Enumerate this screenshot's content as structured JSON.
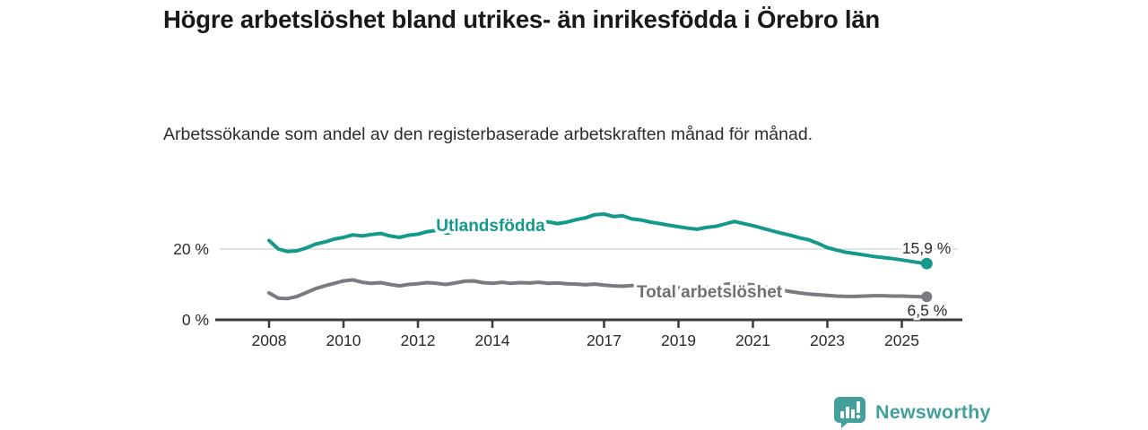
{
  "header": {
    "title": "Högre arbetslöshet bland utrikes- än inrikesfödda i Örebro län",
    "subtitle": "Arbetssökande som andel av den registerbaserade arbetskraften månad för månad."
  },
  "chart_data": {
    "type": "line",
    "title": "Högre arbetslöshet bland utrikes- än inrikesfödda i Örebro län",
    "subtitle": "Arbetssökande som andel av den registerbaserade arbetskraften månad för månad.",
    "unit": "%",
    "grid": "horizontal-20-only",
    "legend_position": "inline-on-line",
    "colors": {
      "accent": "#14998a",
      "secondary": "#7a7a80",
      "axis": "#3a3a3a",
      "gridline": "#d9d9d9",
      "text": "#2b2b2b"
    },
    "x_axis": {
      "ticks": [
        2008,
        2010,
        2012,
        2014,
        2017,
        2019,
        2021,
        2023,
        2025
      ],
      "range": [
        2006.6,
        2026.6
      ]
    },
    "y_axis": {
      "ticks": [
        {
          "value": 0,
          "label": "0 %"
        },
        {
          "value": 20,
          "label": "20 %"
        }
      ],
      "range": [
        0,
        32
      ],
      "gridlines": [
        20
      ]
    },
    "x": [
      2008.0,
      2008.25,
      2008.5,
      2008.75,
      2009.0,
      2009.25,
      2009.5,
      2009.75,
      2010.0,
      2010.25,
      2010.5,
      2010.75,
      2011.0,
      2011.25,
      2011.5,
      2011.75,
      2012.0,
      2012.25,
      2012.5,
      2012.75,
      2013.0,
      2013.25,
      2013.5,
      2013.75,
      2014.0,
      2014.25,
      2014.5,
      2014.75,
      2015.0,
      2015.25,
      2015.5,
      2015.75,
      2016.0,
      2016.25,
      2016.5,
      2016.75,
      2017.0,
      2017.25,
      2017.5,
      2017.75,
      2018.0,
      2018.25,
      2018.5,
      2018.75,
      2019.0,
      2019.25,
      2019.5,
      2019.75,
      2020.0,
      2020.25,
      2020.5,
      2020.75,
      2021.0,
      2021.25,
      2021.5,
      2021.75,
      2022.0,
      2022.25,
      2022.5,
      2022.75,
      2023.0,
      2023.25,
      2023.5,
      2023.75,
      2024.0,
      2024.25,
      2024.5,
      2024.75,
      2025.0,
      2025.25,
      2025.5,
      2025.67
    ],
    "series": [
      {
        "name": "Utlandsfödda",
        "color": "#14998a",
        "end_label": "15,9 %",
        "end_value": 15.9,
        "values": [
          22.4,
          20.0,
          19.3,
          19.5,
          20.3,
          21.4,
          22.0,
          22.8,
          23.3,
          24.0,
          23.7,
          24.1,
          24.4,
          23.7,
          23.3,
          23.9,
          24.2,
          24.9,
          25.3,
          24.5,
          24.7,
          25.4,
          25.8,
          25.5,
          25.6,
          26.0,
          25.8,
          26.1,
          26.4,
          27.0,
          27.7,
          27.2,
          27.6,
          28.3,
          28.8,
          29.7,
          29.9,
          29.2,
          29.4,
          28.5,
          28.2,
          27.6,
          27.2,
          26.7,
          26.3,
          25.9,
          25.6,
          26.1,
          26.4,
          27.1,
          27.8,
          27.2,
          26.6,
          25.9,
          25.2,
          24.5,
          23.9,
          23.2,
          22.6,
          21.6,
          20.4,
          19.7,
          19.1,
          18.7,
          18.3,
          17.9,
          17.6,
          17.3,
          16.9,
          16.5,
          16.1,
          15.9
        ]
      },
      {
        "name": "Total arbetslöshet",
        "color": "#7a7a80",
        "end_label": "6,5 %",
        "end_value": 6.5,
        "values": [
          7.6,
          6.1,
          6.0,
          6.6,
          7.7,
          8.8,
          9.6,
          10.3,
          11.0,
          11.3,
          10.6,
          10.3,
          10.5,
          10.0,
          9.6,
          10.0,
          10.2,
          10.5,
          10.3,
          10.0,
          10.4,
          10.9,
          11.0,
          10.5,
          10.3,
          10.6,
          10.3,
          10.5,
          10.4,
          10.6,
          10.3,
          10.4,
          10.2,
          10.1,
          9.9,
          10.1,
          9.8,
          9.6,
          9.5,
          9.7,
          9.4,
          9.2,
          9.1,
          9.3,
          9.0,
          8.9,
          8.8,
          9.1,
          9.2,
          10.0,
          10.3,
          10.1,
          9.9,
          9.4,
          8.9,
          8.4,
          8.0,
          7.6,
          7.3,
          7.1,
          6.9,
          6.7,
          6.6,
          6.6,
          6.7,
          6.8,
          6.8,
          6.7,
          6.7,
          6.6,
          6.5,
          6.5
        ]
      }
    ]
  },
  "footer": {
    "brand": "Newsworthy",
    "logo_color": "#43a09a"
  }
}
